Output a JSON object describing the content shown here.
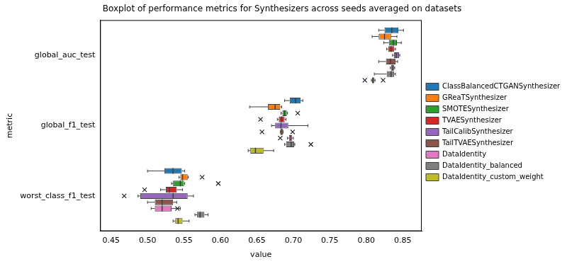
{
  "chart_data": {
    "type": "boxplot",
    "orientation": "horizontal",
    "title": "Boxplot of performance metrics for Synthesizers across seeds averaged on datasets",
    "x_label": "value",
    "y_label": "metric",
    "categories": [
      "global_auc_test",
      "global_f1_test",
      "worst_class_f1_test"
    ],
    "xlim": [
      0.435,
      0.876
    ],
    "xticks": [
      {
        "value": 0.45,
        "label": "0.45"
      },
      {
        "value": 0.5,
        "label": "0.50"
      },
      {
        "value": 0.55,
        "label": "0.55"
      },
      {
        "value": 0.6,
        "label": "0.60"
      },
      {
        "value": 0.65,
        "label": "0.65"
      },
      {
        "value": 0.7,
        "label": "0.70"
      },
      {
        "value": 0.75,
        "label": "0.75"
      },
      {
        "value": 0.8,
        "label": "0.80"
      },
      {
        "value": 0.85,
        "label": "0.85"
      }
    ],
    "grid": false,
    "legend": "right",
    "marker": "x",
    "series": [
      {
        "name": "ClassBalancedCTGANSynthesizer",
        "color": "#1f77b4",
        "boxes": [
          {
            "min": 0.817,
            "q1": 0.825,
            "median": 0.835,
            "q3": 0.844,
            "max": 0.851,
            "outliers": []
          },
          {
            "min": 0.688,
            "q1": 0.695,
            "median": 0.703,
            "q3": 0.71,
            "max": 0.713,
            "outliers": []
          },
          {
            "min": 0.5,
            "q1": 0.523,
            "median": 0.535,
            "q3": 0.547,
            "max": 0.551,
            "outliers": []
          }
        ]
      },
      {
        "name": "GReaTSynthesizer",
        "color": "#ff7f0e",
        "boxes": [
          {
            "min": 0.808,
            "q1": 0.817,
            "median": 0.825,
            "q3": 0.834,
            "max": 0.842,
            "outliers": []
          },
          {
            "min": 0.64,
            "q1": 0.665,
            "median": 0.675,
            "q3": 0.682,
            "max": 0.684,
            "outliers": []
          },
          {
            "min": 0.543,
            "q1": 0.545,
            "median": 0.548,
            "q3": 0.555,
            "max": 0.556,
            "outliers": [
              0.575
            ]
          }
        ]
      },
      {
        "name": "SMOTESynthesizer",
        "color": "#2ca02c",
        "boxes": [
          {
            "min": 0.824,
            "q1": 0.831,
            "median": 0.837,
            "q3": 0.842,
            "max": 0.848,
            "outliers": []
          },
          {
            "min": 0.683,
            "q1": 0.685,
            "median": 0.688,
            "q3": 0.691,
            "max": 0.692,
            "outliers": [
              0.706
            ]
          },
          {
            "min": 0.533,
            "q1": 0.535,
            "median": 0.545,
            "q3": 0.55,
            "max": 0.551,
            "outliers": [
              0.597
            ]
          }
        ]
      },
      {
        "name": "TVAESynthesizer",
        "color": "#d62728",
        "boxes": [
          {
            "min": 0.828,
            "q1": 0.83,
            "median": 0.834,
            "q3": 0.838,
            "max": 0.84,
            "outliers": []
          },
          {
            "min": 0.678,
            "q1": 0.68,
            "median": 0.684,
            "q3": 0.688,
            "max": 0.69,
            "outliers": [
              0.655
            ]
          },
          {
            "min": 0.518,
            "q1": 0.525,
            "median": 0.53,
            "q3": 0.54,
            "max": 0.548,
            "outliers": [
              0.496
            ]
          }
        ]
      },
      {
        "name": "TailCalibSynthesizer",
        "color": "#9467bd",
        "boxes": [
          {
            "min": 0.836,
            "q1": 0.838,
            "median": 0.841,
            "q3": 0.845,
            "max": 0.846,
            "outliers": []
          },
          {
            "min": 0.67,
            "q1": 0.675,
            "median": 0.683,
            "q3": 0.693,
            "max": 0.72,
            "outliers": []
          },
          {
            "min": 0.487,
            "q1": 0.49,
            "median": 0.535,
            "q3": 0.555,
            "max": 0.563,
            "outliers": [
              0.468
            ]
          }
        ]
      },
      {
        "name": "TailTVAESynthesizer",
        "color": "#8c564b",
        "boxes": [
          {
            "min": 0.817,
            "q1": 0.827,
            "median": 0.833,
            "q3": 0.84,
            "max": 0.843,
            "outliers": []
          },
          {
            "min": 0.682,
            "q1": 0.682,
            "median": 0.684,
            "q3": 0.686,
            "max": 0.686,
            "outliers": [
              0.657,
              0.699
            ]
          },
          {
            "min": 0.5,
            "q1": 0.51,
            "median": 0.52,
            "q3": 0.535,
            "max": 0.54,
            "outliers": []
          }
        ]
      },
      {
        "name": "DataIdentity",
        "color": "#e377c2",
        "boxes": [
          {
            "min": 0.833,
            "q1": 0.834,
            "median": 0.836,
            "q3": 0.838,
            "max": 0.839,
            "outliers": []
          },
          {
            "min": 0.692,
            "q1": 0.694,
            "median": 0.696,
            "q3": 0.698,
            "max": 0.7,
            "outliers": [
              0.682
            ]
          },
          {
            "min": 0.505,
            "q1": 0.51,
            "median": 0.52,
            "q3": 0.533,
            "max": 0.545,
            "outliers": [
              0.541
            ]
          }
        ]
      },
      {
        "name": "DataIdentity_balanced",
        "color": "#7f7f7f",
        "boxes": [
          {
            "min": 0.811,
            "q1": 0.828,
            "median": 0.834,
            "q3": 0.838,
            "max": 0.84,
            "outliers": []
          },
          {
            "min": 0.688,
            "q1": 0.69,
            "median": 0.697,
            "q3": 0.701,
            "max": 0.702,
            "outliers": [
              0.724
            ]
          },
          {
            "min": 0.565,
            "q1": 0.568,
            "median": 0.572,
            "q3": 0.578,
            "max": 0.583,
            "outliers": []
          }
        ]
      },
      {
        "name": "DataIdentity_custom_weight",
        "color": "#bcbd22",
        "boxes": [
          {
            "min": 0.807,
            "q1": 0.808,
            "median": 0.809,
            "q3": 0.811,
            "max": 0.812,
            "outliers": [
              0.798,
              0.823
            ]
          },
          {
            "min": 0.638,
            "q1": 0.641,
            "median": 0.648,
            "q3": 0.659,
            "max": 0.673,
            "outliers": []
          },
          {
            "min": 0.535,
            "q1": 0.538,
            "median": 0.542,
            "q3": 0.548,
            "max": 0.557,
            "outliers": []
          }
        ]
      }
    ]
  }
}
